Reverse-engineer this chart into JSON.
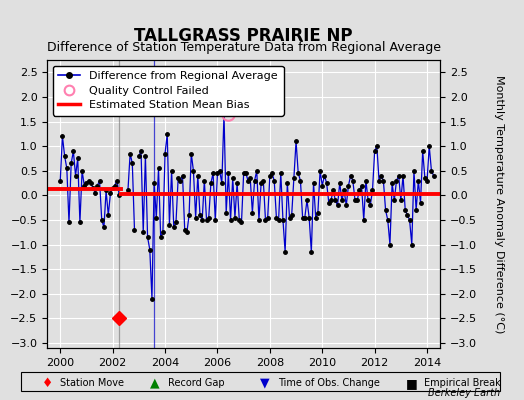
{
  "title": "TALLGRASS PRAIRIE NP",
  "subtitle": "Difference of Station Temperature Data from Regional Average",
  "ylabel_right": "Monthly Temperature Anomaly Difference (°C)",
  "ylim": [
    -3.1,
    2.75
  ],
  "xlim": [
    1999.5,
    2014.5
  ],
  "yticks": [
    -3,
    -2.5,
    -2,
    -1.5,
    -1,
    -0.5,
    0,
    0.5,
    1,
    1.5,
    2,
    2.5
  ],
  "xticks": [
    2000,
    2002,
    2004,
    2006,
    2008,
    2010,
    2012,
    2014
  ],
  "bias_value1": 0.12,
  "bias_value2": 0.02,
  "bias_break_x": 2002.33,
  "station_move_x": 2002.25,
  "station_move_y": -2.5,
  "time_obs_x": 2003.58,
  "qc_fail_x": 2006.42,
  "qc_fail_y": 1.65,
  "background_color": "#e0e0e0",
  "plot_bg_color": "#e0e0e0",
  "line_color": "#0000cc",
  "bias_color": "#ff0000",
  "grid_color": "#ffffff",
  "title_fontsize": 12,
  "subtitle_fontsize": 9,
  "label_fontsize": 8,
  "legend_fontsize": 8,
  "segment_breaks": [
    28,
    32
  ],
  "data_x": [
    2000.0,
    2000.083,
    2000.167,
    2000.25,
    2000.333,
    2000.417,
    2000.5,
    2000.583,
    2000.667,
    2000.75,
    2000.833,
    2000.917,
    2001.0,
    2001.083,
    2001.167,
    2001.25,
    2001.333,
    2001.417,
    2001.5,
    2001.583,
    2001.667,
    2001.75,
    2001.833,
    2001.917,
    2002.0,
    2002.083,
    2002.167,
    2002.25,
    2002.583,
    2002.667,
    2002.75,
    2002.833,
    2003.0,
    2003.083,
    2003.167,
    2003.25,
    2003.333,
    2003.417,
    2003.5,
    2003.583,
    2003.667,
    2003.75,
    2003.833,
    2003.917,
    2004.0,
    2004.083,
    2004.167,
    2004.25,
    2004.333,
    2004.417,
    2004.5,
    2004.583,
    2004.667,
    2004.75,
    2004.833,
    2004.917,
    2005.0,
    2005.083,
    2005.167,
    2005.25,
    2005.333,
    2005.417,
    2005.5,
    2005.583,
    2005.667,
    2005.75,
    2005.833,
    2005.917,
    2006.0,
    2006.083,
    2006.167,
    2006.25,
    2006.333,
    2006.417,
    2006.5,
    2006.583,
    2006.667,
    2006.75,
    2006.833,
    2006.917,
    2007.0,
    2007.083,
    2007.167,
    2007.25,
    2007.333,
    2007.417,
    2007.5,
    2007.583,
    2007.667,
    2007.75,
    2007.833,
    2007.917,
    2008.0,
    2008.083,
    2008.167,
    2008.25,
    2008.333,
    2008.417,
    2008.5,
    2008.583,
    2008.667,
    2008.75,
    2008.833,
    2008.917,
    2009.0,
    2009.083,
    2009.167,
    2009.25,
    2009.333,
    2009.417,
    2009.5,
    2009.583,
    2009.667,
    2009.75,
    2009.833,
    2009.917,
    2010.0,
    2010.083,
    2010.167,
    2010.25,
    2010.333,
    2010.417,
    2010.5,
    2010.583,
    2010.667,
    2010.75,
    2010.833,
    2010.917,
    2011.0,
    2011.083,
    2011.167,
    2011.25,
    2011.333,
    2011.417,
    2011.5,
    2011.583,
    2011.667,
    2011.75,
    2011.833,
    2011.917,
    2012.0,
    2012.083,
    2012.167,
    2012.25,
    2012.333,
    2012.417,
    2012.5,
    2012.583,
    2012.667,
    2012.75,
    2012.833,
    2012.917,
    2013.0,
    2013.083,
    2013.167,
    2013.25,
    2013.333,
    2013.417,
    2013.5,
    2013.583,
    2013.667,
    2013.75,
    2013.833,
    2013.917,
    2014.0,
    2014.083,
    2014.167,
    2014.25
  ],
  "data_y": [
    0.3,
    1.2,
    0.8,
    0.55,
    -0.55,
    0.65,
    0.9,
    0.4,
    0.75,
    -0.55,
    0.5,
    0.2,
    0.25,
    0.3,
    0.25,
    0.15,
    0.05,
    0.2,
    0.3,
    -0.5,
    -0.65,
    0.1,
    -0.4,
    0.05,
    0.15,
    0.2,
    0.3,
    0.0,
    0.1,
    0.85,
    0.65,
    -0.7,
    0.8,
    0.9,
    -0.75,
    0.8,
    -0.85,
    -1.1,
    -2.1,
    0.25,
    -0.45,
    0.55,
    -0.85,
    -0.75,
    0.85,
    1.25,
    -0.6,
    0.5,
    -0.65,
    -0.55,
    0.35,
    0.3,
    0.4,
    -0.7,
    -0.75,
    -0.4,
    0.85,
    0.5,
    -0.45,
    0.4,
    -0.4,
    -0.5,
    0.3,
    -0.5,
    -0.45,
    0.25,
    0.45,
    -0.5,
    0.45,
    0.5,
    0.25,
    1.65,
    -0.35,
    0.45,
    -0.5,
    0.35,
    -0.45,
    0.25,
    -0.5,
    -0.55,
    0.45,
    0.45,
    0.3,
    0.35,
    -0.35,
    0.3,
    0.5,
    -0.5,
    0.25,
    0.3,
    -0.5,
    -0.45,
    0.4,
    0.45,
    0.3,
    -0.45,
    -0.5,
    0.45,
    -0.5,
    -1.15,
    0.25,
    -0.45,
    -0.4,
    0.35,
    1.1,
    0.45,
    0.3,
    -0.45,
    -0.45,
    -0.1,
    -0.45,
    -1.15,
    0.25,
    -0.45,
    -0.35,
    0.5,
    0.2,
    0.4,
    0.25,
    -0.15,
    -0.1,
    0.1,
    -0.1,
    -0.2,
    0.25,
    -0.1,
    0.1,
    -0.2,
    0.2,
    0.4,
    0.3,
    -0.1,
    -0.1,
    0.1,
    0.2,
    -0.5,
    0.3,
    -0.1,
    -0.2,
    0.1,
    0.9,
    1.0,
    0.3,
    0.4,
    0.3,
    -0.3,
    -0.5,
    -1.0,
    0.25,
    -0.1,
    0.3,
    0.4,
    -0.1,
    0.4,
    -0.3,
    -0.4,
    -0.5,
    -1.0,
    0.5,
    -0.3,
    0.3,
    -0.15,
    0.9,
    0.35,
    0.3,
    1.0,
    0.5,
    0.4
  ],
  "footnote": "Berkeley Earth"
}
